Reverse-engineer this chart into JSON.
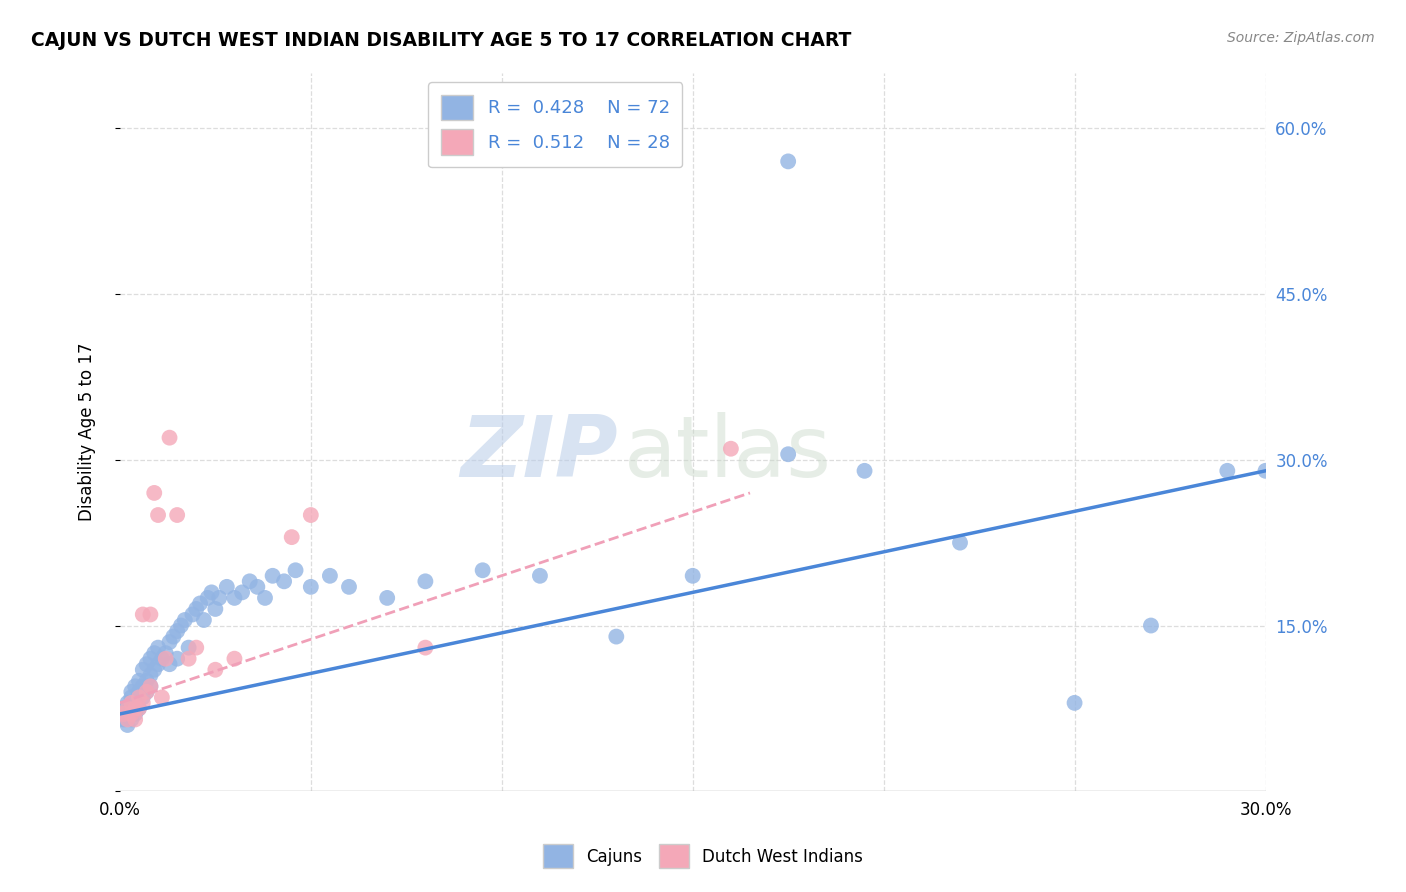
{
  "title": "CAJUN VS DUTCH WEST INDIAN DISABILITY AGE 5 TO 17 CORRELATION CHART",
  "source": "Source: ZipAtlas.com",
  "ylabel": "Disability Age 5 to 17",
  "xlim": [
    0.0,
    0.3
  ],
  "ylim": [
    0.0,
    0.65
  ],
  "xticks": [
    0.0,
    0.05,
    0.1,
    0.15,
    0.2,
    0.25,
    0.3
  ],
  "ytick_positions": [
    0.0,
    0.15,
    0.3,
    0.45,
    0.6
  ],
  "grid_color": "#dddddd",
  "background_color": "#ffffff",
  "cajun_color": "#92b4e3",
  "dutch_color": "#f4a8b8",
  "cajun_line_color": "#4a86d8",
  "dutch_line_color": "#f0a0b8",
  "cajun_R": 0.428,
  "cajun_N": 72,
  "dutch_R": 0.512,
  "dutch_N": 28,
  "watermark_zip": "ZIP",
  "watermark_atlas": "atlas",
  "legend_label_cajun": "Cajuns",
  "legend_label_dutch": "Dutch West Indians",
  "cajun_x": [
    0.001,
    0.001,
    0.002,
    0.002,
    0.002,
    0.003,
    0.003,
    0.003,
    0.003,
    0.004,
    0.004,
    0.004,
    0.005,
    0.005,
    0.005,
    0.006,
    0.006,
    0.006,
    0.007,
    0.007,
    0.007,
    0.008,
    0.008,
    0.008,
    0.009,
    0.009,
    0.01,
    0.01,
    0.011,
    0.012,
    0.013,
    0.013,
    0.014,
    0.015,
    0.015,
    0.016,
    0.017,
    0.018,
    0.019,
    0.02,
    0.021,
    0.022,
    0.023,
    0.024,
    0.025,
    0.026,
    0.028,
    0.03,
    0.032,
    0.034,
    0.036,
    0.038,
    0.04,
    0.043,
    0.046,
    0.05,
    0.055,
    0.06,
    0.07,
    0.08,
    0.095,
    0.11,
    0.13,
    0.15,
    0.175,
    0.195,
    0.22,
    0.25,
    0.27,
    0.29,
    0.3,
    0.175
  ],
  "cajun_y": [
    0.065,
    0.075,
    0.07,
    0.08,
    0.06,
    0.075,
    0.085,
    0.065,
    0.09,
    0.08,
    0.095,
    0.07,
    0.09,
    0.1,
    0.075,
    0.095,
    0.11,
    0.085,
    0.1,
    0.115,
    0.09,
    0.105,
    0.12,
    0.095,
    0.11,
    0.125,
    0.115,
    0.13,
    0.12,
    0.125,
    0.135,
    0.115,
    0.14,
    0.145,
    0.12,
    0.15,
    0.155,
    0.13,
    0.16,
    0.165,
    0.17,
    0.155,
    0.175,
    0.18,
    0.165,
    0.175,
    0.185,
    0.175,
    0.18,
    0.19,
    0.185,
    0.175,
    0.195,
    0.19,
    0.2,
    0.185,
    0.195,
    0.185,
    0.175,
    0.19,
    0.2,
    0.195,
    0.14,
    0.195,
    0.305,
    0.29,
    0.225,
    0.08,
    0.15,
    0.29,
    0.29,
    0.57
  ],
  "dutch_x": [
    0.001,
    0.002,
    0.002,
    0.003,
    0.003,
    0.004,
    0.004,
    0.005,
    0.005,
    0.006,
    0.006,
    0.007,
    0.008,
    0.008,
    0.009,
    0.01,
    0.011,
    0.012,
    0.013,
    0.015,
    0.018,
    0.02,
    0.025,
    0.03,
    0.045,
    0.05,
    0.08,
    0.16
  ],
  "dutch_y": [
    0.07,
    0.075,
    0.065,
    0.08,
    0.07,
    0.075,
    0.065,
    0.085,
    0.075,
    0.08,
    0.16,
    0.09,
    0.095,
    0.16,
    0.27,
    0.25,
    0.085,
    0.12,
    0.32,
    0.25,
    0.12,
    0.13,
    0.11,
    0.12,
    0.23,
    0.25,
    0.13,
    0.31
  ],
  "cajun_line_x": [
    0.0,
    0.3
  ],
  "cajun_line_y": [
    0.07,
    0.29
  ],
  "dutch_line_x": [
    0.0,
    0.165
  ],
  "dutch_line_y": [
    0.08,
    0.27
  ]
}
